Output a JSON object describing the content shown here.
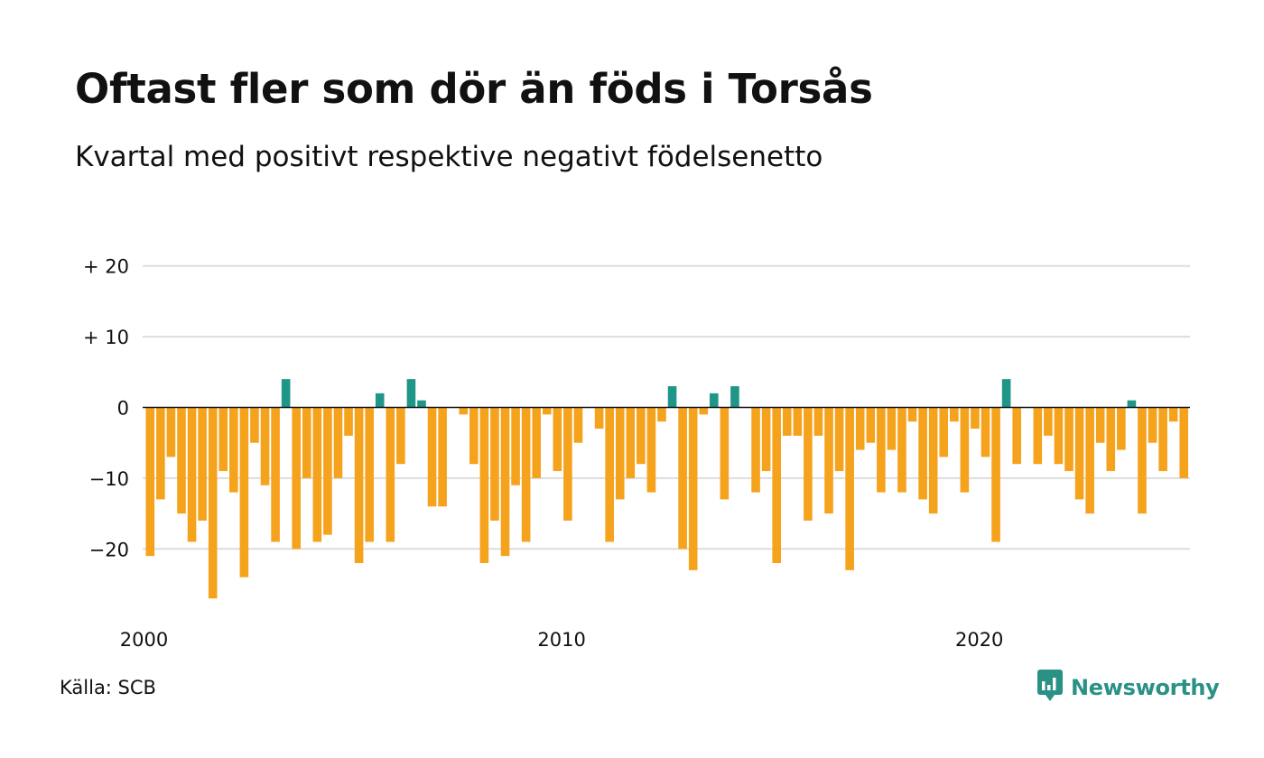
{
  "title": "Oftast fler som dör än föds i Torsås",
  "subtitle": "Kvartal med positivt respektive negativt födelsenetto",
  "source": "Källa: SCB",
  "brand": {
    "name": "Newsworthy",
    "icon": "newsworthy-logo-icon"
  },
  "colors": {
    "positive": "#1f9688",
    "negative": "#f5a21c",
    "grid": "#dddddd",
    "zero_line": "#111111"
  },
  "chart_data": {
    "type": "bar",
    "title": "Oftast fler som dör än föds i Torsås",
    "subtitle": "Kvartal med positivt respektive negativt födelsenetto",
    "x_start": "2000 Q1",
    "x_tick_labels": [
      "2000",
      "2010",
      "2020"
    ],
    "y_tick_labels": [
      "+ 20",
      "+ 10",
      "0",
      "−10",
      "−20"
    ],
    "y_ticks": [
      20,
      10,
      0,
      -10,
      -20
    ],
    "ylim": [
      -27,
      20
    ],
    "grid": true,
    "series": [
      {
        "values": [
          -21,
          -13,
          -7,
          -15,
          -19,
          -16,
          -27,
          -9,
          -12,
          -24,
          -5,
          -11,
          -19,
          4,
          -20,
          -10,
          -19,
          -18,
          -10,
          -4,
          -22,
          -19,
          2,
          -19,
          -8,
          4,
          1,
          -14,
          -14,
          0,
          -1,
          -8,
          -22,
          -16,
          -21,
          -11,
          -19,
          -10,
          -1,
          -9,
          -16,
          -5,
          0,
          -3,
          -19,
          -13,
          -10,
          -8,
          -12,
          -2,
          3,
          -20,
          -23,
          -1,
          2,
          -13,
          3,
          0,
          -12,
          -9,
          -22,
          -4,
          -4,
          -16,
          -4,
          -15,
          -9,
          -23,
          -6,
          -5,
          -12,
          -6,
          -12,
          -2,
          -13,
          -15,
          -7,
          -2,
          -12,
          -3,
          -7,
          -19,
          4,
          -8,
          0,
          -8,
          -4,
          -8,
          -9,
          -13,
          -15,
          -5,
          -9,
          -6,
          1,
          -15,
          -5,
          -9,
          -2,
          -10
        ]
      }
    ]
  }
}
